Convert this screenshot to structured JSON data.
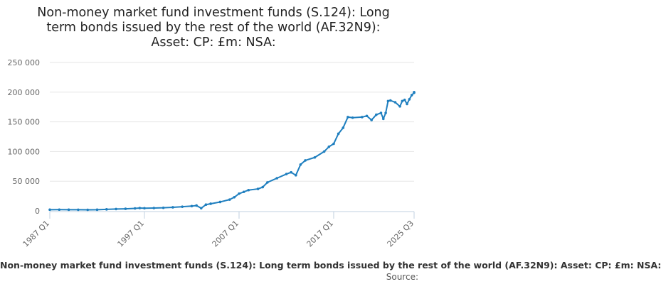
{
  "chart_data": {
    "type": "line",
    "title_lines": [
      "Non-money market fund investment funds (S.124): Long",
      "term bonds issued by the rest of the world (AF.32N9):",
      "Asset: CP: £m: NSA:"
    ],
    "series": [
      {
        "name": "Non-money market fund investment funds (S.124): Long term bonds issued by the rest of the world (AF.32N9): Asset: CP: £m: NSA:",
        "color": "#1f7fbf",
        "points": [
          [
            "1987 Q1",
            2000
          ],
          [
            "1988 Q1",
            2100
          ],
          [
            "1989 Q1",
            2000
          ],
          [
            "1990 Q1",
            1900
          ],
          [
            "1991 Q1",
            1800
          ],
          [
            "1992 Q1",
            2000
          ],
          [
            "1993 Q1",
            2600
          ],
          [
            "1994 Q1",
            3100
          ],
          [
            "1995 Q1",
            3500
          ],
          [
            "1996 Q1",
            4200
          ],
          [
            "1996 Q3",
            4800
          ],
          [
            "1997 Q1",
            4500
          ],
          [
            "1998 Q1",
            4800
          ],
          [
            "1999 Q1",
            5200
          ],
          [
            "2000 Q1",
            6000
          ],
          [
            "2001 Q1",
            7000
          ],
          [
            "2002 Q1",
            8000
          ],
          [
            "2002 Q3",
            9000
          ],
          [
            "2003 Q1",
            4500
          ],
          [
            "2003 Q3",
            10500
          ],
          [
            "2004 Q1",
            12000
          ],
          [
            "2005 Q1",
            15000
          ],
          [
            "2006 Q1",
            19000
          ],
          [
            "2006 Q3",
            23000
          ],
          [
            "2007 Q1",
            29000
          ],
          [
            "2007 Q3",
            32000
          ],
          [
            "2008 Q1",
            35000
          ],
          [
            "2009 Q1",
            37000
          ],
          [
            "2009 Q3",
            40000
          ],
          [
            "2010 Q1",
            48000
          ],
          [
            "2011 Q1",
            55000
          ],
          [
            "2012 Q1",
            62000
          ],
          [
            "2012 Q3",
            65000
          ],
          [
            "2013 Q1",
            60000
          ],
          [
            "2013 Q3",
            78000
          ],
          [
            "2014 Q1",
            85000
          ],
          [
            "2015 Q1",
            90000
          ],
          [
            "2016 Q1",
            100000
          ],
          [
            "2016 Q3",
            108000
          ],
          [
            "2017 Q1",
            113000
          ],
          [
            "2017 Q3",
            130000
          ],
          [
            "2018 Q1",
            140000
          ],
          [
            "2018 Q3",
            158000
          ],
          [
            "2019 Q1",
            157000
          ],
          [
            "2020 Q1",
            158000
          ],
          [
            "2020 Q3",
            160000
          ],
          [
            "2021 Q1",
            153000
          ],
          [
            "2021 Q3",
            162000
          ],
          [
            "2022 Q1",
            165000
          ],
          [
            "2022 Q2",
            155000
          ],
          [
            "2022 Q3",
            165000
          ],
          [
            "2022 Q4",
            185000
          ],
          [
            "2023 Q1",
            186000
          ],
          [
            "2023 Q3",
            183000
          ],
          [
            "2024 Q1",
            176000
          ],
          [
            "2024 Q2",
            185000
          ],
          [
            "2024 Q3",
            187000
          ],
          [
            "2024 Q4",
            180000
          ],
          [
            "2025 Q1",
            188000
          ],
          [
            "2025 Q2",
            195000
          ],
          [
            "2025 Q3",
            199000
          ],
          [
            "2025 Q3",
            200000
          ]
        ]
      }
    ],
    "x_range": [
      "1987 Q1",
      "2025 Q3"
    ],
    "x_ticks": [
      "1987 Q1",
      "1997 Q1",
      "2007 Q1",
      "2017 Q1",
      "2025 Q3"
    ],
    "y_ticks": [
      {
        "value": 0,
        "label": "0"
      },
      {
        "value": 50000,
        "label": "50 000"
      },
      {
        "value": 100000,
        "label": "100 000"
      },
      {
        "value": 150000,
        "label": "150 000"
      },
      {
        "value": 200000,
        "label": "200 000"
      },
      {
        "value": 250000,
        "label": "250 000"
      }
    ],
    "ylim": [
      0,
      250000
    ],
    "grid": "horizontal",
    "legend_placement": "bottom",
    "legend_text": "Non-money market fund investment funds (S.124): Long term bonds issued by the rest of the world (AF.32N9): Asset: CP: £m: NSA:",
    "source_label": "Source:"
  }
}
